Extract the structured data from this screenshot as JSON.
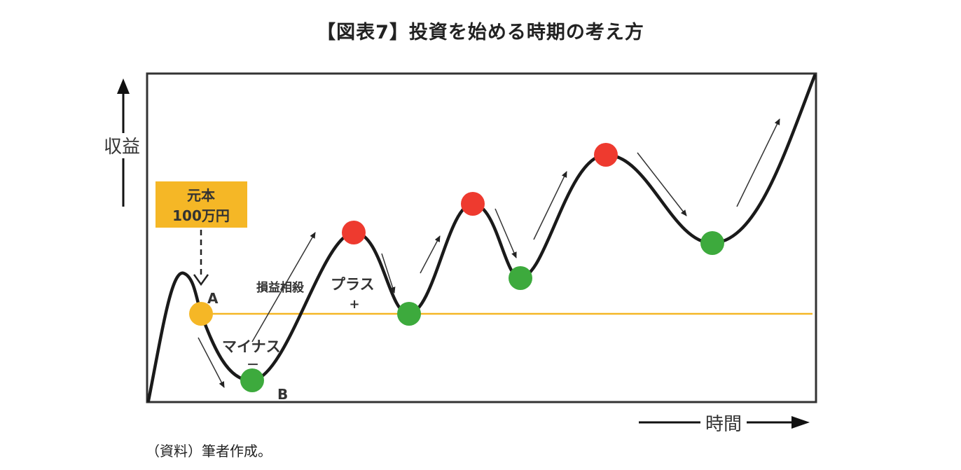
{
  "title": "【図表7】投資を始める時期の考え方",
  "source": "（資料）筆者作成。",
  "axis": {
    "y_label": "収益",
    "x_label": "時間"
  },
  "principal_box": {
    "line1": "元本",
    "line2": "100万円",
    "color": "#f5b726"
  },
  "labels": {
    "point_a": "A",
    "point_b": "B",
    "minus": "マイナス",
    "minus_sign": "－",
    "plus": "プラス",
    "plus_sign": "+",
    "offset": "損益相殺"
  },
  "colors": {
    "buy_point": "#3daa3d",
    "sell_point": "#ee3a2f",
    "start_point": "#f5b726",
    "baseline": "#f5b726",
    "curve": "#1a1a1a"
  }
}
